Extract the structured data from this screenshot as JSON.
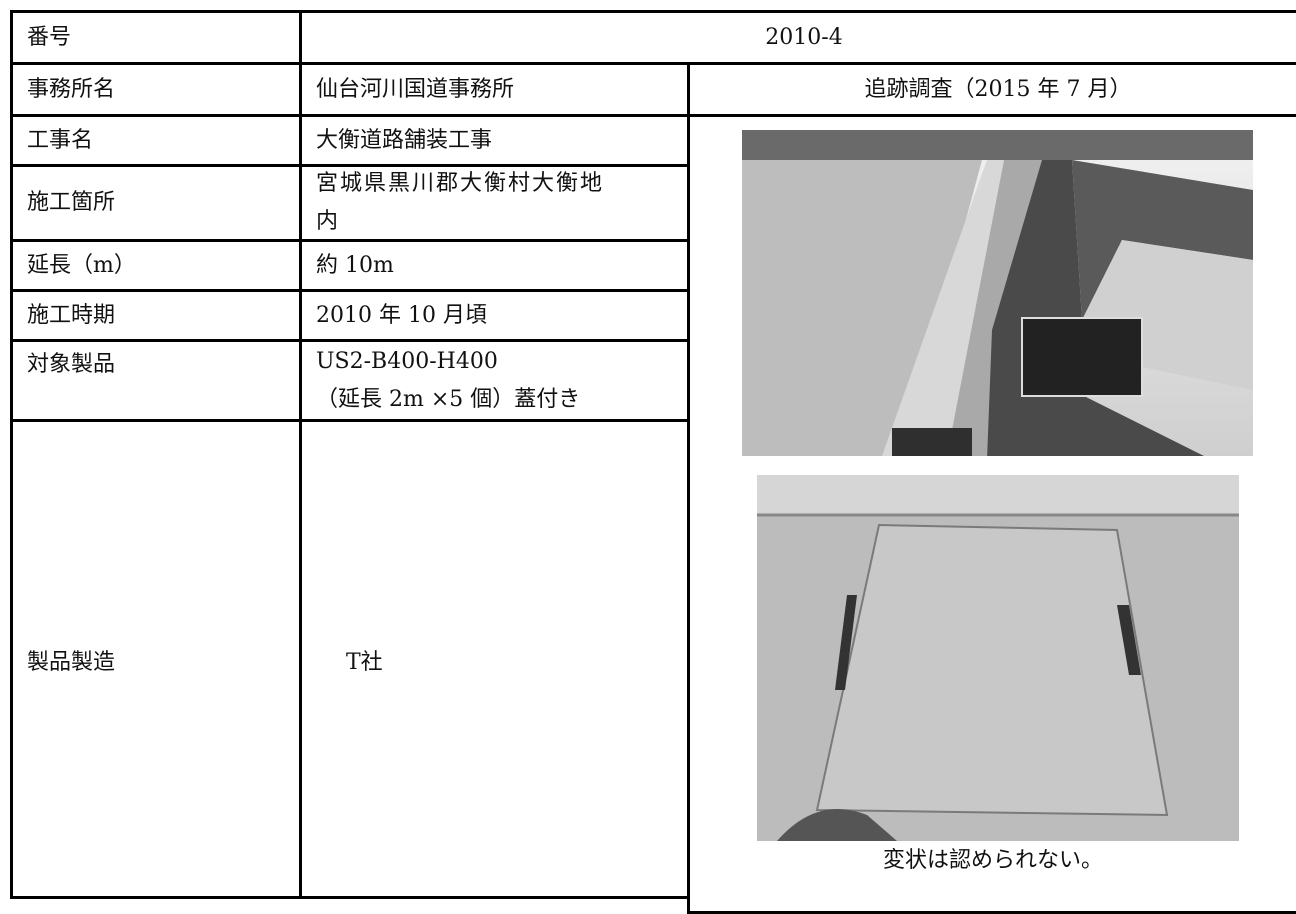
{
  "table": {
    "header": {
      "label": "番号",
      "value": "2010-4"
    },
    "survey_title": "追跡調査（2015 年 7 月）",
    "rows": [
      {
        "label": "事務所名",
        "value": "仙台河川国道事務所"
      },
      {
        "label": "工事名",
        "value": "大衡道路舗装工事"
      },
      {
        "label": "施工箇所",
        "value": [
          "宮城県黒川郡大衡村大衡地",
          "内"
        ]
      },
      {
        "label": "延長（m）",
        "value": "約 10m"
      },
      {
        "label": "施工時期",
        "value": "2010 年 10 月頃"
      },
      {
        "label": "対象製品",
        "value": [
          "US2-B400-H400",
          "（延長 2m ×5 個）蓋付き"
        ]
      },
      {
        "label": "製品製造",
        "value": "T社"
      }
    ],
    "photo_caption": "変状は認められない。"
  }
}
